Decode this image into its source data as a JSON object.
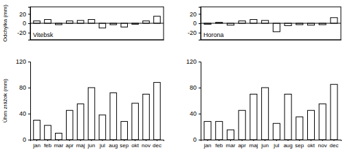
{
  "chart_data": [
    {
      "type": "bar",
      "title": "Vitebsk",
      "y_label": "Odchýlka (mm)",
      "categories": [
        "jan",
        "feb",
        "mar",
        "apr",
        "maj",
        "jun",
        "jul",
        "aug",
        "sep",
        "okt",
        "nov",
        "dec"
      ],
      "values": [
        5,
        8,
        -3,
        5,
        6,
        8,
        -10,
        -3,
        -8,
        -2,
        5,
        15
      ],
      "color": "#ffffff",
      "ylim": [
        -35,
        35
      ],
      "yticks": [
        -20,
        0,
        20
      ],
      "tick_labels": "y"
    },
    {
      "type": "bar",
      "title": "Horona",
      "categories": [
        "jan",
        "feb",
        "mar",
        "apr",
        "maj",
        "jun",
        "jul",
        "aug",
        "sep",
        "okt",
        "nov",
        "dec"
      ],
      "values": [
        -2,
        2,
        -4,
        5,
        8,
        6,
        -18,
        -5,
        -3,
        -4,
        -3,
        12
      ],
      "color": "#ffffff",
      "ylim": [
        -35,
        35
      ],
      "yticks": [
        -20,
        0,
        20
      ],
      "tick_labels": "y"
    },
    {
      "type": "bar",
      "y_label": "Úhrn zrážok (mm)",
      "categories": [
        "jan",
        "feb",
        "mar",
        "apr",
        "maj",
        "jun",
        "jul",
        "aug",
        "sep",
        "okt",
        "nov",
        "dec"
      ],
      "values": [
        30,
        22,
        10,
        45,
        55,
        80,
        38,
        72,
        28,
        56,
        70,
        88
      ],
      "color": "#ffffff",
      "ylim": [
        0,
        120
      ],
      "yticks": [
        0,
        40,
        80,
        120
      ]
    },
    {
      "type": "bar",
      "categories": [
        "jan",
        "feb",
        "mar",
        "apr",
        "maj",
        "jun",
        "jul",
        "aug",
        "sep",
        "okt",
        "nov",
        "dec"
      ],
      "values": [
        28,
        28,
        15,
        45,
        70,
        80,
        25,
        70,
        35,
        45,
        55,
        85
      ],
      "color": "#ffffff",
      "ylim": [
        0,
        120
      ],
      "yticks": [
        0,
        40,
        80,
        120
      ]
    }
  ]
}
